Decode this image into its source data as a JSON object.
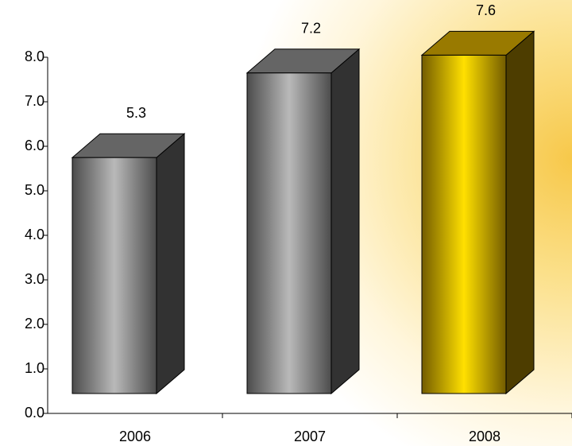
{
  "chart_data": {
    "type": "bar3d",
    "categories": [
      "2006",
      "2007",
      "2008"
    ],
    "values": [
      5.3,
      7.2,
      7.6
    ],
    "colors": [
      "#a8a8a8",
      "#a8a8a8",
      "#ffcc00"
    ],
    "ylim": [
      0,
      8
    ],
    "yticks": [
      {
        "value": 0,
        "label": "0.0"
      },
      {
        "value": 1,
        "label": "1.0"
      },
      {
        "value": 2,
        "label": "2.0"
      },
      {
        "value": 3,
        "label": "3.0"
      },
      {
        "value": 4,
        "label": "4.0"
      },
      {
        "value": 5,
        "label": "5.0"
      },
      {
        "value": 6,
        "label": "6.0"
      },
      {
        "value": 7,
        "label": "7.0"
      },
      {
        "value": 8,
        "label": "8.0"
      }
    ]
  }
}
